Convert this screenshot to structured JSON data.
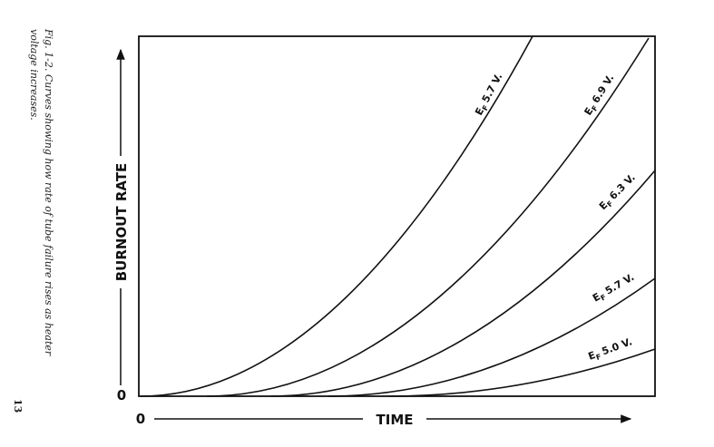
{
  "caption": {
    "line1": "Fig. 1-2. Curves showing how rate of tube failure rises as heater",
    "line2": "voltage increases."
  },
  "page_number": "13",
  "axes": {
    "y_label": "BURNOUT RATE",
    "y_origin": "0",
    "x_label": "TIME",
    "x_origin": "0"
  },
  "curves": [
    {
      "symbol": "E",
      "subscript": "F",
      "voltage": "5.7 V."
    },
    {
      "symbol": "E",
      "subscript": "F",
      "voltage": "6.9 V."
    },
    {
      "symbol": "E",
      "subscript": "F",
      "voltage": "6.3 V."
    },
    {
      "symbol": "E",
      "subscript": "F",
      "voltage": "5.7 V."
    },
    {
      "symbol": "E",
      "subscript": "F",
      "voltage": "5.0 V."
    }
  ]
}
